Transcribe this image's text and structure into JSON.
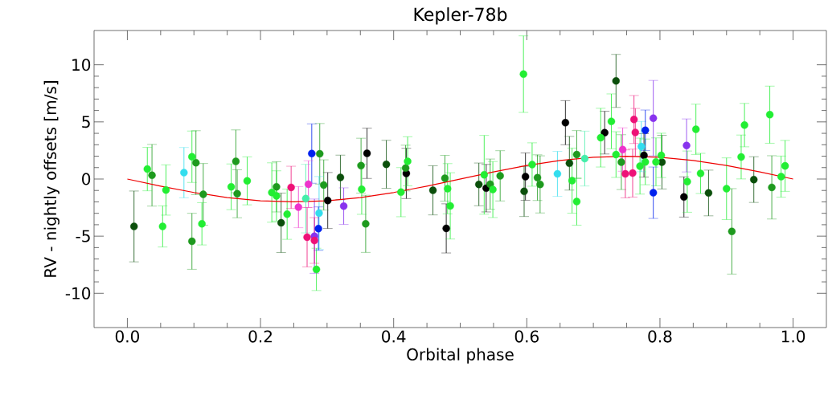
{
  "chart_data": {
    "type": "scatter",
    "title": "Kepler-78b",
    "xlabel": "Orbital phase",
    "ylabel": "RV - nightly offsets [m/s]",
    "xlim": [
      -0.05,
      1.05
    ],
    "ylim": [
      -13,
      13
    ],
    "xticks": [
      {
        "value": 0,
        "label": "0.0"
      },
      {
        "value": 0.2,
        "label": "0.2"
      },
      {
        "value": 0.4,
        "label": "0.4"
      },
      {
        "value": 0.6,
        "label": "0.6"
      },
      {
        "value": 0.8,
        "label": "0.8"
      },
      {
        "value": 1,
        "label": "1.0"
      }
    ],
    "yticks": [
      -10,
      -5,
      0,
      5,
      10
    ],
    "series": [
      {
        "marker": "circle",
        "color": "#000000",
        "x": [
          0.301,
          0.36,
          0.419,
          0.479,
          0.539,
          0.598,
          0.658,
          0.717,
          0.776,
          0.836
        ],
        "values": [
          -1.88,
          2.25,
          0.49,
          -4.32,
          -0.8,
          0.21,
          4.93,
          4.06,
          2.07,
          -1.57
        ],
        "errors": [
          2.45,
          2.2,
          2.2,
          2.15,
          2.08,
          2.07,
          1.93,
          1.87,
          1.9,
          1.76
        ]
      },
      {
        "marker": "circle",
        "color": "#0b4f0b",
        "x": [
          0.01,
          0.231,
          0.32,
          0.389,
          0.459,
          0.528,
          0.596,
          0.664,
          0.734,
          0.803,
          0.873,
          0.941
        ],
        "values": [
          -4.15,
          -3.83,
          0.14,
          1.29,
          -0.99,
          -0.47,
          -1.08,
          1.38,
          8.59,
          1.48,
          -1.22,
          -0.05
        ],
        "errors": [
          3.1,
          2.6,
          1.95,
          2.1,
          2.15,
          1.87,
          2.2,
          2.35,
          2.32,
          2.35,
          2.0,
          2.0
        ]
      },
      {
        "marker": "circle",
        "color": "#1e9a1e",
        "x": [
          0.037,
          0.097,
          0.103,
          0.114,
          0.163,
          0.165,
          0.224,
          0.289,
          0.295,
          0.351,
          0.358,
          0.418,
          0.477,
          0.545,
          0.56,
          0.616,
          0.62,
          0.675,
          0.742,
          0.908,
          0.968
        ],
        "values": [
          0.33,
          -5.45,
          1.43,
          -1.34,
          1.55,
          -1.29,
          -0.68,
          2.21,
          -0.52,
          1.17,
          -3.92,
          0.96,
          0.07,
          -0.45,
          0.28,
          0.12,
          -0.47,
          2.14,
          1.48,
          -4.58,
          -0.73
        ],
        "errors": [
          2.7,
          2.45,
          2.8,
          2.7,
          2.75,
          2.1,
          2.2,
          2.65,
          2.2,
          2.4,
          2.5,
          2.0,
          2.0,
          2.2,
          2.2,
          2.0,
          2.5,
          2.1,
          2.4,
          3.74,
          2.77
        ]
      },
      {
        "marker": "circle",
        "color": "#22ee33",
        "x": [
          0.03,
          0.053,
          0.058,
          0.097,
          0.112,
          0.156,
          0.18,
          0.217,
          0.224,
          0.24,
          0.284,
          0.352,
          0.411,
          0.421,
          0.481,
          0.485,
          0.536,
          0.549,
          0.595,
          0.608,
          0.668,
          0.675,
          0.711,
          0.727,
          0.734,
          0.77,
          0.778,
          0.794,
          0.802,
          0.841,
          0.854,
          0.861,
          0.9,
          0.922,
          0.927,
          0.965,
          0.982,
          0.988
        ],
        "values": [
          0.87,
          -4.15,
          -0.96,
          1.95,
          -3.92,
          -0.68,
          -0.16,
          -1.18,
          -1.48,
          -3.08,
          -7.91,
          -0.89,
          -1.15,
          1.55,
          -0.85,
          -2.35,
          0.37,
          -0.92,
          9.18,
          1.27,
          -0.14,
          -1.97,
          3.62,
          5.05,
          2.14,
          1.13,
          1.5,
          1.5,
          2.07,
          -0.23,
          4.35,
          0.49,
          -0.85,
          1.93,
          4.72,
          5.63,
          0.21,
          1.15
        ],
        "errors": [
          1.9,
          1.8,
          2.2,
          2.25,
          1.85,
          2.0,
          2.1,
          2.6,
          2.2,
          2.2,
          1.85,
          2.2,
          2.15,
          2.15,
          2.2,
          2.9,
          3.45,
          2.45,
          3.35,
          1.9,
          2.85,
          2.07,
          2.57,
          2.4,
          2.0,
          2.45,
          2.0,
          2.1,
          1.94,
          2.68,
          2.2,
          1.76,
          2.7,
          1.92,
          1.9,
          2.5,
          1.8,
          2.23
        ]
      },
      {
        "marker": "circle",
        "color": "#44eeaa",
        "x": [
          0.268,
          0.687
        ],
        "values": [
          -1.71,
          1.79
        ],
        "errors": [
          3.0,
          2.4
        ]
      },
      {
        "marker": "circle",
        "color": "#33ddee",
        "x": [
          0.085,
          0.288,
          0.646,
          0.772
        ],
        "values": [
          0.56,
          -2.98,
          0.45,
          2.84
        ],
        "errors": [
          2.2,
          3.2,
          1.97,
          2.2
        ]
      },
      {
        "marker": "circle",
        "color": "#0022ee",
        "x": [
          0.277,
          0.287,
          0.778,
          0.79
        ],
        "values": [
          2.23,
          -4.34,
          4.27,
          -1.2
        ],
        "errors": [
          2.6,
          1.9,
          1.77,
          2.25
        ]
      },
      {
        "marker": "circle",
        "color": "#8833ee",
        "x": [
          0.281,
          0.325,
          0.79,
          0.84
        ],
        "values": [
          -5.0,
          -2.37,
          5.33,
          2.94
        ],
        "errors": [
          3.25,
          1.6,
          3.3,
          2.32
        ]
      },
      {
        "marker": "circle",
        "color": "#ee1177",
        "x": [
          0.246,
          0.27,
          0.281,
          0.748,
          0.759,
          0.761,
          0.763
        ],
        "values": [
          -0.73,
          -5.09,
          -5.38,
          0.45,
          0.52,
          5.21,
          4.08
        ],
        "errors": [
          1.85,
          2.6,
          2.0,
          2.1,
          2.1,
          2.1,
          2.1
        ]
      },
      {
        "marker": "circle",
        "color": "#ee33cc",
        "x": [
          0.257,
          0.272,
          0.744
        ],
        "values": [
          -2.46,
          -0.45,
          2.58
        ],
        "errors": [
          1.8,
          2.05,
          1.9
        ]
      },
      {
        "type": "line",
        "marker": "none",
        "color": "#ee0000",
        "x": [
          0,
          0.05,
          0.1,
          0.15,
          0.2,
          0.25,
          0.3,
          0.35,
          0.4,
          0.45,
          0.5,
          0.55,
          0.6,
          0.65,
          0.7,
          0.75,
          0.8,
          0.85,
          0.9,
          0.95,
          1.0
        ],
        "values": [
          0,
          -0.62,
          -1.18,
          -1.62,
          -1.9,
          -2.0,
          -1.9,
          -1.62,
          -1.18,
          -0.62,
          0,
          0.62,
          1.18,
          1.62,
          1.9,
          2.0,
          1.9,
          1.62,
          1.18,
          0.62,
          0
        ]
      }
    ]
  }
}
